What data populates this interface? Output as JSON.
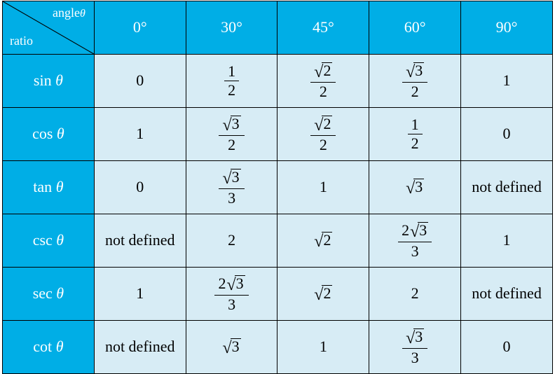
{
  "type": "table",
  "background_header": "#00aee6",
  "background_body": "#d7ecf5",
  "text_header_color": "#ffffff",
  "text_body_color": "#000000",
  "border_color": "#000000",
  "border_width": 1.5,
  "font_family": "Times New Roman",
  "fontsize": 22,
  "corner": {
    "top_label": "angle",
    "top_var": "θ",
    "bottom_label": "ratio"
  },
  "columns": [
    "0°",
    "30°",
    "45°",
    "60°",
    "90°"
  ],
  "rows": [
    {
      "label": "sin",
      "var": "θ",
      "cells": [
        {
          "t": "plain",
          "text": "0"
        },
        {
          "t": "frac",
          "num_plain": "1",
          "den": "2"
        },
        {
          "t": "frac",
          "num_sqrt": "2",
          "den": "2"
        },
        {
          "t": "frac",
          "num_sqrt": "3",
          "den": "2"
        },
        {
          "t": "plain",
          "text": "1"
        }
      ]
    },
    {
      "label": "cos",
      "var": "θ",
      "cells": [
        {
          "t": "plain",
          "text": "1"
        },
        {
          "t": "frac",
          "num_sqrt": "3",
          "den": "2"
        },
        {
          "t": "frac",
          "num_sqrt": "2",
          "den": "2"
        },
        {
          "t": "frac",
          "num_plain": "1",
          "den": "2"
        },
        {
          "t": "plain",
          "text": "0"
        }
      ]
    },
    {
      "label": "tan",
      "var": "θ",
      "cells": [
        {
          "t": "plain",
          "text": "0"
        },
        {
          "t": "frac",
          "num_sqrt": "3",
          "den": "3"
        },
        {
          "t": "plain",
          "text": "1"
        },
        {
          "t": "sqrt",
          "val": "3"
        },
        {
          "t": "plain",
          "text": "not defined"
        }
      ]
    },
    {
      "label": "csc",
      "var": "θ",
      "cells": [
        {
          "t": "plain",
          "text": "not defined"
        },
        {
          "t": "plain",
          "text": "2"
        },
        {
          "t": "sqrt",
          "val": "2"
        },
        {
          "t": "frac",
          "num_coef": "2",
          "num_sqrt": "3",
          "den": "3"
        },
        {
          "t": "plain",
          "text": "1"
        }
      ]
    },
    {
      "label": "sec",
      "var": "θ",
      "cells": [
        {
          "t": "plain",
          "text": "1"
        },
        {
          "t": "frac",
          "num_coef": "2",
          "num_sqrt": "3",
          "den": "3"
        },
        {
          "t": "sqrt",
          "val": "2"
        },
        {
          "t": "plain",
          "text": "2"
        },
        {
          "t": "plain",
          "text": "not defined"
        }
      ]
    },
    {
      "label": "cot",
      "var": "θ",
      "cells": [
        {
          "t": "plain",
          "text": "not defined"
        },
        {
          "t": "sqrt",
          "val": "3"
        },
        {
          "t": "plain",
          "text": "1"
        },
        {
          "t": "frac",
          "num_sqrt": "3",
          "den": "3"
        },
        {
          "t": "plain",
          "text": "0"
        }
      ]
    }
  ]
}
